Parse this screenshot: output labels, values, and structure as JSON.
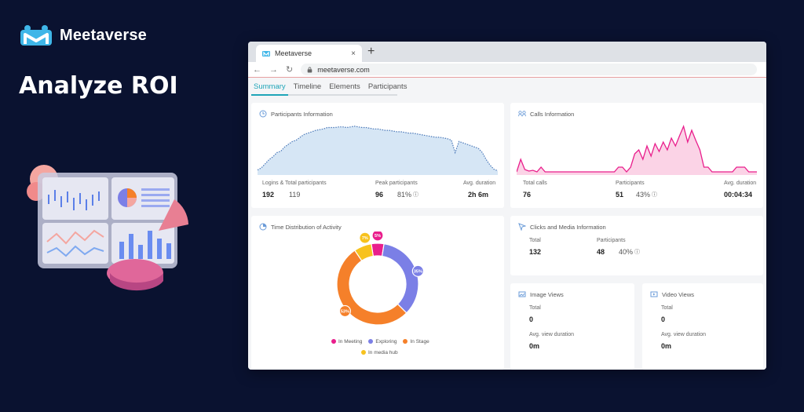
{
  "brand": {
    "name": "Meetaverse"
  },
  "headline": "Analyze ROI",
  "browser": {
    "tab_title": "Meetaverse",
    "tab_close": "×",
    "new_tab": "+",
    "url": "meetaverse.com"
  },
  "nav": {
    "tabs": [
      "Summary",
      "Timeline",
      "Elements",
      "Participants"
    ],
    "active": 0
  },
  "participants_info": {
    "title": "Participants Information",
    "logins_label": "Logins & Total participants",
    "logins": "192",
    "total_participants": "119",
    "peak_label": "Peak participants",
    "peak": "96",
    "peak_pct": "81%",
    "duration_label": "Avg. duration",
    "duration": "2h 6m",
    "series": [
      5,
      8,
      14,
      20,
      24,
      30,
      32,
      38,
      42,
      46,
      48,
      52,
      56,
      58,
      60,
      62,
      63,
      64,
      66,
      66,
      66,
      67,
      67,
      66,
      67,
      68,
      67,
      66,
      66,
      65,
      64,
      64,
      63,
      62,
      62,
      61,
      60,
      60,
      59,
      58,
      58,
      57,
      56,
      55,
      54,
      53,
      52,
      52,
      51,
      50,
      48,
      30,
      46,
      44,
      42,
      40,
      38,
      36,
      30,
      20,
      12,
      6,
      4
    ]
  },
  "calls_info": {
    "title": "Calls Information",
    "total_label": "Total calls",
    "total": "76",
    "participants_label": "Participants",
    "participants": "51",
    "participants_pct": "43%",
    "duration_label": "Avg. duration",
    "duration": "00:04:34",
    "series": [
      2,
      18,
      5,
      3,
      4,
      2,
      8,
      2,
      2,
      2,
      2,
      2,
      2,
      2,
      2,
      2,
      2,
      2,
      2,
      2,
      2,
      2,
      2,
      2,
      2,
      8,
      8,
      2,
      8,
      25,
      30,
      18,
      35,
      22,
      38,
      28,
      40,
      30,
      45,
      35,
      48,
      60,
      40,
      55,
      42,
      30,
      8,
      8,
      2,
      2,
      2,
      2,
      2,
      2,
      8,
      8,
      8,
      2,
      2,
      2
    ]
  },
  "time_distribution": {
    "title": "Time Distribution of Activity",
    "segments": [
      {
        "name": "In Meeting",
        "value": 5,
        "label": "5%",
        "color": "#e91e8c"
      },
      {
        "name": "Exploring",
        "value": 35,
        "label": "35%",
        "color": "#7b7fe6"
      },
      {
        "name": "In Stage",
        "value": 53,
        "label": "53%",
        "color": "#f5802a"
      },
      {
        "name": "In media hub",
        "value": 7,
        "label": "7%",
        "color": "#f7c21e"
      }
    ]
  },
  "clicks_media": {
    "title": "Clicks and Media Information",
    "total_label": "Total",
    "total": "132",
    "participants_label": "Participants",
    "participants": "48",
    "participants_pct": "40%"
  },
  "image_views": {
    "title": "Image Views",
    "total_label": "Total",
    "total": "0",
    "duration_label": "Avg. view duration",
    "duration": "0m"
  },
  "video_views": {
    "title": "Video Views",
    "total_label": "Total",
    "total": "0",
    "duration_label": "Avg. view duration",
    "duration": "0m"
  },
  "colors": {
    "accent": "#1fa5b8",
    "calls": "#e91e8c",
    "participants_area": "#d6e6f5",
    "background": "#0a1230"
  }
}
